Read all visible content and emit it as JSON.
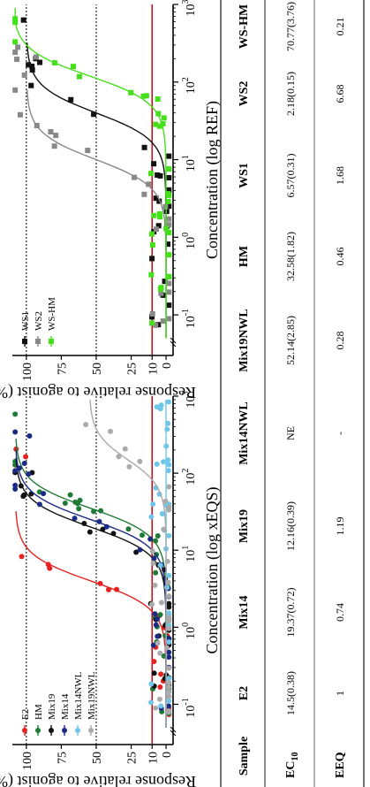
{
  "charts": [
    {
      "id": "left",
      "type": "scatter",
      "xlabel": "Concentration (log xEQS)",
      "ylabel": "Response relative to agonist (%)",
      "x_scale": "log",
      "x_ticks": [
        {
          "label": "10",
          "exp": "-1",
          "value": 0.1
        },
        {
          "label": "10",
          "exp": "0",
          "value": 1
        },
        {
          "label": "10",
          "exp": "1",
          "value": 10
        },
        {
          "label": "10",
          "exp": "2",
          "value": 100
        },
        {
          "label": "10",
          "exp": "3",
          "value": 1000
        }
      ],
      "xlim": [
        0.03,
        1000
      ],
      "y_ticks": [
        "0",
        "10",
        "25",
        "50",
        "75",
        "100"
      ],
      "ylim": [
        -5,
        110
      ],
      "reference_lines": [
        100,
        50
      ],
      "threshold_line": 10,
      "legend_position": "top-left",
      "series": [
        {
          "name": "E2",
          "color": "#e8201f",
          "marker": "circle",
          "ec50": 4,
          "top": 108
        },
        {
          "name": "HM",
          "color": "#1f7a36",
          "marker": "circle",
          "ec50": 35,
          "top": 108
        },
        {
          "name": "Mix19",
          "color": "#111111",
          "marker": "circle",
          "ec50": 20,
          "top": 108
        },
        {
          "name": "Mix14",
          "color": "#1b2a85",
          "marker": "circle",
          "ec50": 25,
          "top": 108
        },
        {
          "name": "Mix14NWL",
          "color": "#6ec6ea",
          "marker": "circle",
          "ec50": 5000,
          "top": 20
        },
        {
          "name": "Mix19NWL",
          "color": "#aaaaaa",
          "marker": "circle",
          "ec50": 150,
          "top": 55
        }
      ]
    },
    {
      "id": "right",
      "type": "scatter",
      "xlabel": "Concentration (log REF)",
      "ylabel": "Response relative to agonist (%)",
      "x_scale": "log",
      "x_ticks": [
        {
          "label": "10",
          "exp": "-1",
          "value": 0.1
        },
        {
          "label": "10",
          "exp": "0",
          "value": 1
        },
        {
          "label": "10",
          "exp": "1",
          "value": 10
        },
        {
          "label": "10",
          "exp": "2",
          "value": 100
        },
        {
          "label": "10",
          "exp": "3",
          "value": 1000
        }
      ],
      "xlim": [
        0.03,
        1000
      ],
      "y_ticks": [
        "0",
        "10",
        "25",
        "50",
        "75",
        "100"
      ],
      "ylim": [
        -5,
        110
      ],
      "reference_lines": [
        100,
        50
      ],
      "threshold_line": 10,
      "legend_position": "top-left",
      "series": [
        {
          "name": "WS1",
          "color": "#111111",
          "marker": "square",
          "ec50": 40,
          "top": 100
        },
        {
          "name": "WS2",
          "color": "#888888",
          "marker": "square",
          "ec50": 10,
          "top": 100
        },
        {
          "name": "WS-HM",
          "color": "#44e01a",
          "marker": "square",
          "ec50": 120,
          "top": 110
        }
      ]
    }
  ],
  "table": {
    "headers": [
      "Sample",
      "E2",
      "Mix14",
      "Mix19",
      "Mix14NWL",
      "Mix19NWL",
      "HM",
      "WS1",
      "WS2",
      "WS-HM"
    ],
    "rows": [
      {
        "label": "EC",
        "sub": "10",
        "cells": [
          "14.5(0.38)",
          "19.37(0.72)",
          "12.16(0.39)",
          "NE",
          "52.14(2.85)",
          "32.58(1.82)",
          "6.57(0.31)",
          "2.18(0.15)",
          "70.77(3.76)"
        ]
      },
      {
        "label": "EEQ",
        "sub": "",
        "cells": [
          "1",
          "0.74",
          "1.19",
          "-",
          "0.28",
          "0.46",
          "1.68",
          "6.68",
          "0.21"
        ]
      }
    ]
  }
}
